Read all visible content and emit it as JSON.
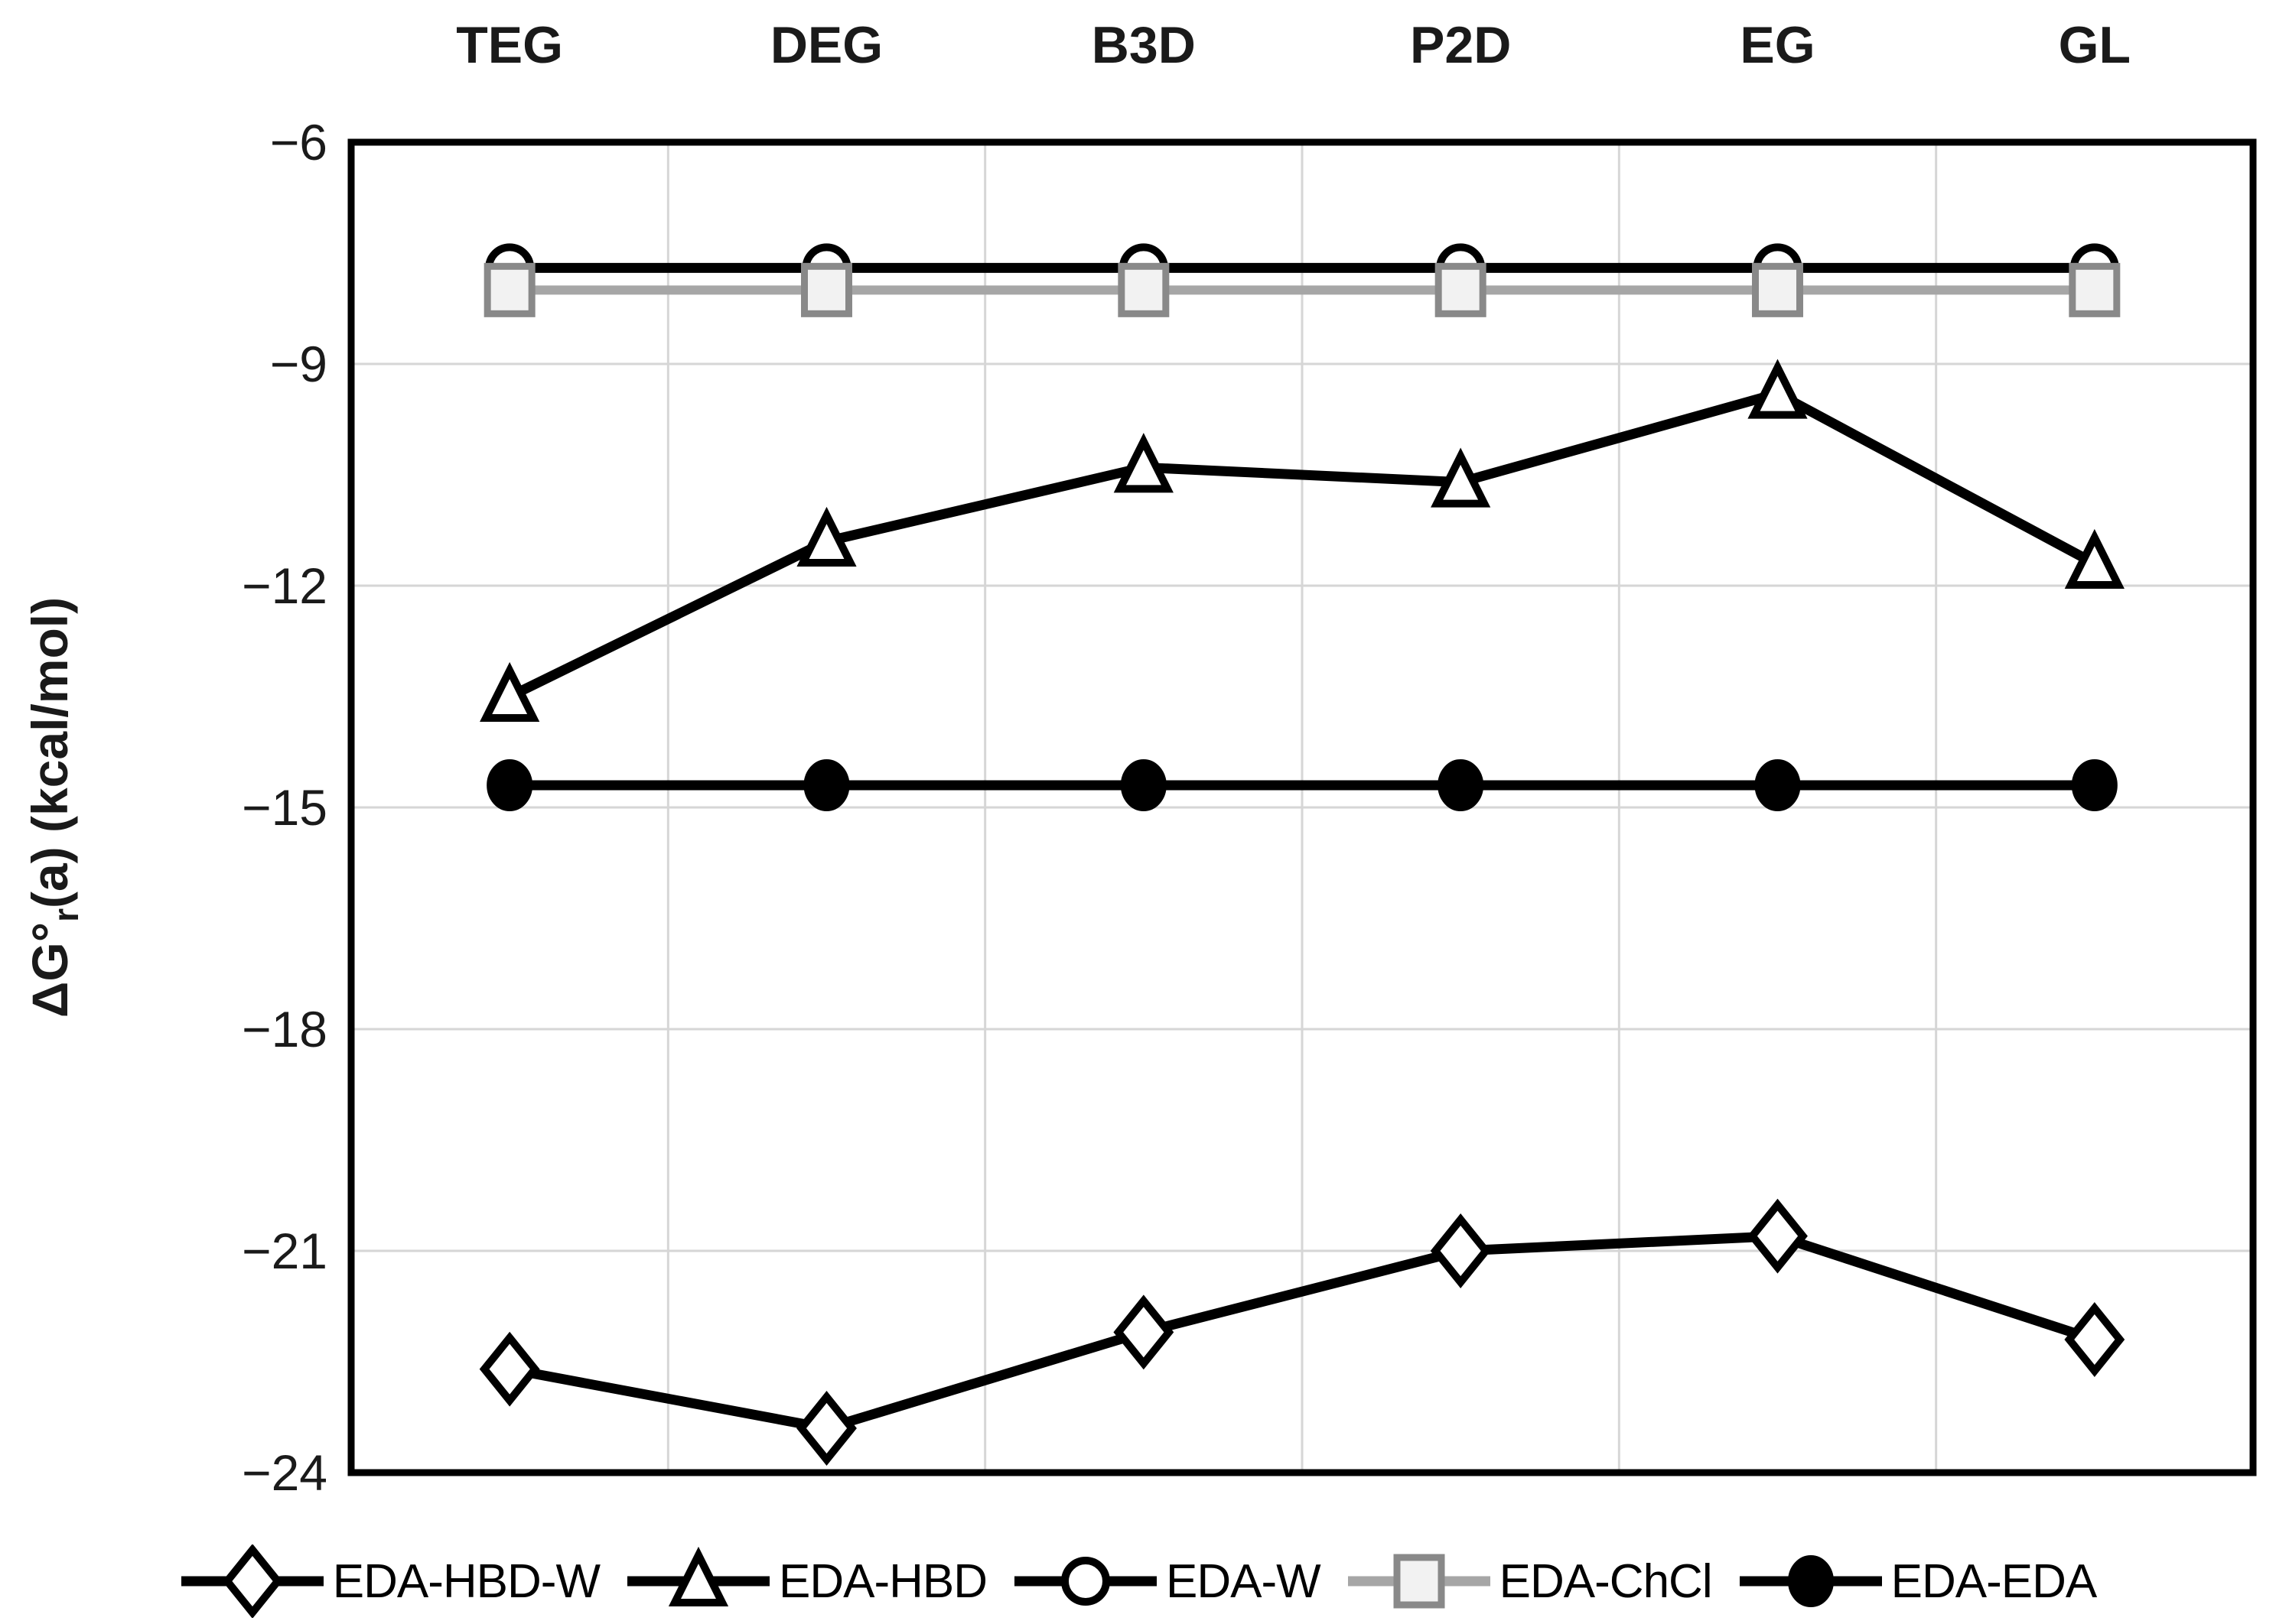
{
  "chart_data": {
    "type": "line",
    "categories": [
      "TEG",
      "DEG",
      "B3D",
      "P2D",
      "EG",
      "GL"
    ],
    "series": [
      {
        "name": "EDA-HBD-W",
        "marker": "diamond-open",
        "line_color": "#000000",
        "values": [
          -22.6,
          -23.4,
          -22.1,
          -21.0,
          -20.8,
          -22.2
        ]
      },
      {
        "name": "EDA-HBD",
        "marker": "triangle-open",
        "line_color": "#000000",
        "values": [
          -13.5,
          -11.4,
          -10.4,
          -10.6,
          -9.4,
          -11.7
        ]
      },
      {
        "name": "EDA-W",
        "marker": "circle-open",
        "line_color": "#000000",
        "values": [
          -7.7,
          -7.7,
          -7.7,
          -7.7,
          -7.7,
          -7.7
        ]
      },
      {
        "name": "EDA-ChCl",
        "marker": "square-gray",
        "line_color": "#a6a6a6",
        "values": [
          -8.0,
          -8.0,
          -8.0,
          -8.0,
          -8.0,
          -8.0
        ]
      },
      {
        "name": "EDA-EDA",
        "marker": "circle-filled",
        "line_color": "#000000",
        "values": [
          -14.7,
          -14.7,
          -14.7,
          -14.7,
          -14.7,
          -14.7
        ]
      }
    ],
    "title": "",
    "xlabel": "",
    "ylabel_parts": {
      "prefix": "ΔG°",
      "sub": "r",
      "suffix": "(a) (kcal/mol)"
    },
    "ylim": [
      -24,
      -6
    ],
    "yticks": [
      -6,
      -9,
      -12,
      -15,
      -18,
      -21,
      -24
    ],
    "ytick_labels": [
      "−6",
      "−9",
      "−12",
      "−15",
      "−18",
      "−21",
      "−24"
    ],
    "grid": "on",
    "legend_position": "bottom",
    "colors": {
      "line_black": "#000000",
      "gridline": "#d6d6d6",
      "plot_border": "#000000",
      "text": "#1a1a1a",
      "chcl_line": "#a6a6a6",
      "chcl_fill": "#f2f2f2",
      "chcl_border": "#898989",
      "background": "#ffffff"
    }
  },
  "legend": {
    "entries": [
      "EDA-HBD-W",
      "EDA-HBD",
      "EDA-W",
      "EDA-ChCl",
      "EDA-EDA"
    ]
  }
}
